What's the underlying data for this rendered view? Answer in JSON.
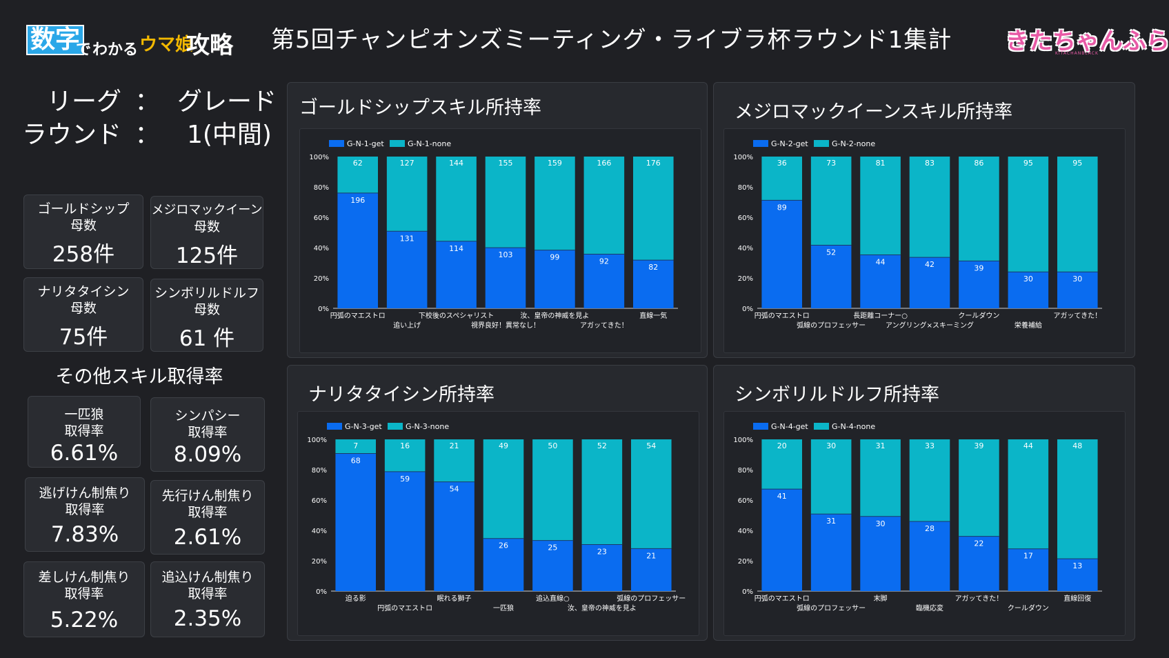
{
  "header": {
    "logo_left": {
      "box_text": "数字",
      "de": "で",
      "wakaru": "わかる",
      "uma": "ウマ娘",
      "kouryaku": "攻略"
    },
    "title": "第5回チャンピオンズミーティング・ライブラ杯ラウンド1集計",
    "logo_right": {
      "text": "きたちゃんふらっく",
      "sub": "KITACHANBLACK"
    }
  },
  "league": {
    "league_label": "リーグ",
    "league_value": "グレード",
    "round_label": "ラウンド",
    "round_value": "1(中間)",
    "colon": "："
  },
  "counts": [
    {
      "name_line1": "ゴールドシップ",
      "name_line2": "母数",
      "value": "258件"
    },
    {
      "name_line1": "メジロマックイーン",
      "name_line2": "母数",
      "value": "125件"
    },
    {
      "name_line1": "ナリタタイシン",
      "name_line2": "母数",
      "value": "75件"
    },
    {
      "name_line1": "シンボリルドルフ",
      "name_line2": "母数",
      "value": "61 件"
    }
  ],
  "other_heading": "その他スキル取得率",
  "other_skills": [
    {
      "name": "一匹狼",
      "sub": "取得率",
      "value": "6.61%"
    },
    {
      "name": "シンパシー",
      "sub": "取得率",
      "value": "8.09%"
    },
    {
      "name": "逃げけん制焦り",
      "sub": "取得率",
      "value": "7.83%"
    },
    {
      "name": "先行けん制焦り",
      "sub": "取得率",
      "value": "2.61%"
    },
    {
      "name": "差しけん制焦り",
      "sub": "取得率",
      "value": "5.22%"
    },
    {
      "name": "追込けん制焦り",
      "sub": "取得率",
      "value": "2.35%"
    }
  ],
  "colors": {
    "get": "#0a6cf0",
    "none": "#0bb5c8",
    "background": "#1f2024",
    "panel": "#27292e"
  },
  "chart_data": [
    {
      "title": "ゴールドシップスキル所持率",
      "type": "bar",
      "stacked": "100%",
      "categories": [
        "円弧のマエストロ",
        "追い上げ",
        "下校後のスペシャリスト",
        "視界良好！異常なし！",
        "汝、皇帝の神威を見よ",
        "アガッてきた！",
        "直線一気"
      ],
      "series": [
        {
          "name": "G-N-1-get",
          "values": [
            196,
            131,
            114,
            103,
            99,
            92,
            82
          ]
        },
        {
          "name": "G-N-1-none",
          "values": [
            62,
            127,
            144,
            155,
            159,
            166,
            176
          ]
        }
      ],
      "y_ticks": [
        "0%",
        "20%",
        "40%",
        "60%",
        "80%",
        "100%"
      ],
      "legend": "top-left"
    },
    {
      "title": "メジロマックイーンスキル所持率",
      "type": "bar",
      "stacked": "100%",
      "categories": [
        "円弧のマエストロ",
        "弧線のプロフェッサー",
        "長距離コーナー○",
        "アングリング×スキーミング",
        "クールダウン",
        "栄養補給",
        "アガッてきた！"
      ],
      "series": [
        {
          "name": "G-N-2-get",
          "values": [
            89,
            52,
            44,
            42,
            39,
            30,
            30
          ]
        },
        {
          "name": "G-N-2-none",
          "values": [
            36,
            73,
            81,
            83,
            86,
            95,
            95
          ]
        }
      ],
      "y_ticks": [
        "0%",
        "20%",
        "40%",
        "60%",
        "80%",
        "100%"
      ],
      "legend": "top-left"
    },
    {
      "title": "ナリタタイシン所持率",
      "type": "bar",
      "stacked": "100%",
      "categories": [
        "迫る影",
        "円弧のマエストロ",
        "眠れる獅子",
        "一匹狼",
        "追込直線○",
        "汝、皇帝の神威を見よ",
        "弧線のプロフェッサー"
      ],
      "series": [
        {
          "name": "G-N-3-get",
          "values": [
            68,
            59,
            54,
            26,
            25,
            23,
            21
          ]
        },
        {
          "name": "G-N-3-none",
          "values": [
            7,
            16,
            21,
            49,
            50,
            52,
            54
          ]
        }
      ],
      "y_ticks": [
        "0%",
        "20%",
        "40%",
        "60%",
        "80%",
        "100%"
      ],
      "legend": "top-left"
    },
    {
      "title": "シンボリルドルフ所持率",
      "type": "bar",
      "stacked": "100%",
      "categories": [
        "円弧のマエストロ",
        "弧線のプロフェッサー",
        "末脚",
        "臨機応変",
        "アガッてきた！",
        "クールダウン",
        "直線回復"
      ],
      "series": [
        {
          "name": "G-N-4-get",
          "values": [
            41,
            31,
            30,
            28,
            22,
            17,
            13
          ]
        },
        {
          "name": "G-N-4-none",
          "values": [
            20,
            30,
            31,
            33,
            39,
            44,
            48
          ]
        }
      ],
      "y_ticks": [
        "0%",
        "20%",
        "40%",
        "60%",
        "80%",
        "100%"
      ],
      "legend": "top-left"
    }
  ]
}
